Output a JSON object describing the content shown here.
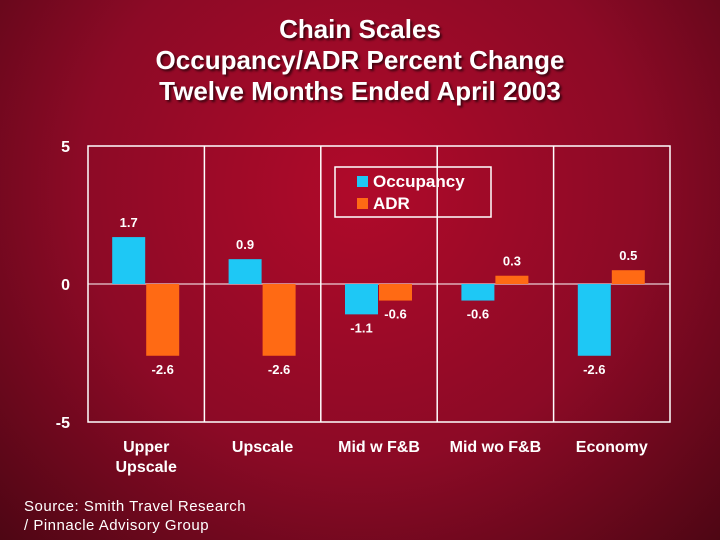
{
  "title_lines": [
    "Chain Scales",
    "Occupancy/ADR Percent Change",
    "Twelve Months Ended April 2003"
  ],
  "source_lines": [
    "Source: Smith Travel Research",
    "/ Pinnacle Advisory Group"
  ],
  "colors": {
    "occupancy": "#1ec8f5",
    "adr": "#ff6a14",
    "axis": "#ffffff",
    "text": "#ffffff"
  },
  "chart_data": {
    "type": "bar",
    "categories": [
      [
        "Upper",
        "Upscale"
      ],
      [
        "Upscale"
      ],
      [
        "Mid w F&B"
      ],
      [
        "Mid wo F&B"
      ],
      [
        "Economy"
      ]
    ],
    "series": [
      {
        "name": "Occupancy",
        "values": [
          1.7,
          0.9,
          -1.1,
          -0.6,
          -2.6
        ]
      },
      {
        "name": "ADR",
        "values": [
          -2.6,
          -2.6,
          -0.6,
          0.3,
          0.5
        ]
      }
    ],
    "value_labels": {
      "Occupancy": [
        "1.7",
        "0.9",
        "-1.1",
        "-0.6",
        "-2.6"
      ],
      "ADR": [
        "-2.6",
        "-2.6",
        "-0.6",
        "0.3",
        "0.5"
      ]
    },
    "ylim": [
      -5,
      5
    ],
    "yticks": [
      5,
      0,
      -5
    ],
    "ytick_labels": [
      "5",
      "0",
      "-5"
    ],
    "title": "Chain Scales Occupancy/ADR Percent Change Twelve Months Ended April 2003",
    "xlabel": "",
    "ylabel": "",
    "grid": false,
    "legend": "top-right"
  }
}
